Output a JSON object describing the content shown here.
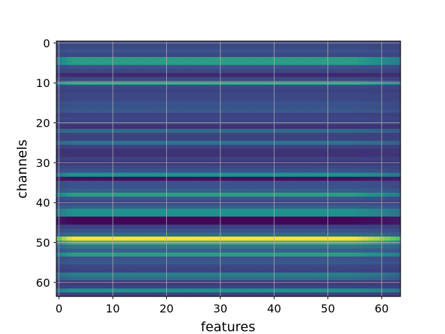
{
  "chart_data": {
    "type": "heatmap",
    "title": "",
    "xlabel": "features",
    "ylabel": "channels",
    "xlim": [
      -0.5,
      63.5
    ],
    "ylim": [
      63.5,
      -0.5
    ],
    "x_ticks": [
      "0",
      "10",
      "20",
      "30",
      "40",
      "50",
      "60"
    ],
    "y_ticks": [
      "0",
      "10",
      "20",
      "30",
      "40",
      "50",
      "60"
    ],
    "grid": true,
    "colormap": "viridis",
    "n_rows": 64,
    "n_cols": 64,
    "row_levels": [
      0.22,
      0.22,
      0.25,
      0.22,
      0.55,
      0.55,
      0.25,
      0.22,
      0.12,
      0.22,
      0.55,
      0.22,
      0.2,
      0.22,
      0.22,
      0.25,
      0.25,
      0.28,
      0.2,
      0.22,
      0.2,
      0.15,
      0.35,
      0.2,
      0.2,
      0.38,
      0.2,
      0.15,
      0.15,
      0.2,
      0.15,
      0.22,
      0.25,
      0.5,
      0.05,
      0.25,
      0.25,
      0.3,
      0.55,
      0.25,
      0.2,
      0.3,
      0.5,
      0.5,
      0.02,
      0.02,
      0.2,
      0.25,
      0.35,
      1.0,
      0.65,
      0.4,
      0.3,
      0.55,
      0.25,
      0.28,
      0.22,
      0.2,
      0.42,
      0.35,
      0.15,
      0.2,
      0.5,
      0.2
    ],
    "col_edge_profile": [
      0.7,
      0.85,
      0.95,
      1,
      1,
      1,
      1,
      1,
      1,
      1,
      1,
      1,
      1,
      1,
      1,
      1,
      1,
      1,
      1,
      1,
      1,
      1,
      1,
      1,
      1,
      1,
      1,
      1,
      1,
      1,
      1,
      1,
      1,
      1,
      1,
      1,
      1,
      1,
      1,
      1,
      1,
      1,
      1,
      1,
      1,
      1,
      1,
      1,
      1,
      1,
      1,
      1,
      1,
      1,
      1,
      0.98,
      0.95,
      0.92,
      0.88,
      0.85,
      0.8,
      0.75,
      0.7,
      0.65
    ]
  }
}
